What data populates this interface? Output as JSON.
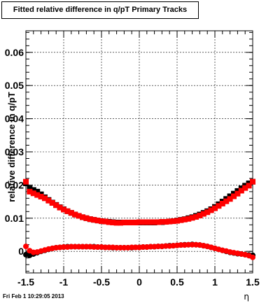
{
  "chart_data": {
    "type": "scatter",
    "title": "Fitted relative difference in q/pT  Primary Tracks",
    "xlabel": "η",
    "ylabel": "relative difference in q/pT",
    "xlim": [
      -1.5,
      1.5
    ],
    "ylim": [
      -0.0065,
      0.0665
    ],
    "grid": true,
    "x_ticks": [
      -1.5,
      -1,
      -0.5,
      0,
      0.5,
      1,
      1.5
    ],
    "x_tick_labels": [
      "-1.5",
      "-1",
      "-0.5",
      "0",
      "0.5",
      "1",
      "1.5"
    ],
    "y_ticks": [
      0,
      0.01,
      0.02,
      0.03,
      0.04,
      0.05,
      0.06
    ],
    "y_tick_labels": [
      "0",
      "0.01",
      "0.02",
      "0.03",
      "0.04",
      "0.05",
      "0.06"
    ],
    "colors": {
      "series_black": "#000000",
      "series_red": "#ff0000"
    },
    "series": [
      {
        "marker": "square",
        "color": "#000000",
        "x": [
          -1.5,
          -1.45,
          -1.4,
          -1.35,
          -1.3,
          -1.25,
          -1.2,
          -1.15,
          -1.1,
          -1.05,
          -1.0,
          -0.95,
          -0.9,
          -0.85,
          -0.8,
          -0.75,
          -0.7,
          -0.65,
          -0.6,
          -0.55,
          -0.5,
          -0.45,
          -0.4,
          -0.35,
          -0.3,
          -0.25,
          -0.2,
          -0.15,
          -0.1,
          -0.05,
          0.0,
          0.05,
          0.1,
          0.15,
          0.2,
          0.25,
          0.3,
          0.35,
          0.4,
          0.45,
          0.5,
          0.55,
          0.6,
          0.65,
          0.7,
          0.75,
          0.8,
          0.85,
          0.9,
          0.95,
          1.0,
          1.05,
          1.1,
          1.15,
          1.2,
          1.25,
          1.3,
          1.35,
          1.4,
          1.45,
          1.5
        ],
        "y": [
          0.0205,
          0.019,
          0.0185,
          0.018,
          0.0172,
          0.0163,
          0.0155,
          0.0147,
          0.014,
          0.0133,
          0.0127,
          0.0121,
          0.0116,
          0.0111,
          0.0107,
          0.0103,
          0.01,
          0.0097,
          0.0095,
          0.0093,
          0.0091,
          0.009,
          0.0089,
          0.0088,
          0.0087,
          0.0087,
          0.0087,
          0.0087,
          0.0087,
          0.0087,
          0.0087,
          0.0087,
          0.0087,
          0.0087,
          0.0087,
          0.0088,
          0.0088,
          0.0089,
          0.009,
          0.0091,
          0.0093,
          0.0095,
          0.0097,
          0.01,
          0.0103,
          0.0107,
          0.0111,
          0.0116,
          0.0121,
          0.0127,
          0.0134,
          0.0142,
          0.015,
          0.0158,
          0.0166,
          0.0174,
          0.0182,
          0.019,
          0.0198,
          0.0205,
          0.021
        ]
      },
      {
        "marker": "circle",
        "color": "#000000",
        "x": [
          -1.5,
          -1.45,
          -1.4,
          -1.35,
          -1.3,
          -1.25,
          -1.2,
          -1.15,
          -1.1,
          -1.05,
          -1.0,
          -0.95,
          -0.9,
          -0.85,
          -0.8,
          -0.75,
          -0.7,
          -0.65,
          -0.6,
          -0.55,
          -0.5,
          -0.45,
          -0.4,
          -0.35,
          -0.3,
          -0.25,
          -0.2,
          -0.15,
          -0.1,
          -0.05,
          0.0,
          0.05,
          0.1,
          0.15,
          0.2,
          0.25,
          0.3,
          0.35,
          0.4,
          0.45,
          0.5,
          0.55,
          0.6,
          0.65,
          0.7,
          0.75,
          0.8,
          0.85,
          0.9,
          0.95,
          1.0,
          1.05,
          1.1,
          1.15,
          1.2,
          1.25,
          1.3,
          1.35,
          1.4,
          1.45,
          1.5
        ],
        "y": [
          -0.001,
          -0.0012,
          -0.0008,
          -0.0004,
          0.0,
          0.0003,
          0.0006,
          0.0009,
          0.0011,
          0.0012,
          0.0013,
          0.0014,
          0.0014,
          0.0014,
          0.0014,
          0.0014,
          0.0014,
          0.0014,
          0.0014,
          0.0013,
          0.0013,
          0.0012,
          0.0012,
          0.0011,
          0.0011,
          0.0011,
          0.0011,
          0.0011,
          0.0011,
          0.0012,
          0.0012,
          0.0013,
          0.0013,
          0.0014,
          0.0014,
          0.0015,
          0.0015,
          0.0016,
          0.0017,
          0.0017,
          0.0018,
          0.0019,
          0.002,
          0.002,
          0.0021,
          0.002,
          0.0019,
          0.0017,
          0.0015,
          0.0012,
          0.0009,
          0.0006,
          0.0003,
          0.0,
          -0.0003,
          -0.0005,
          -0.0007,
          -0.0008,
          -0.001,
          -0.0011,
          -0.0012
        ]
      },
      {
        "marker": "square",
        "color": "#ff0000",
        "x": [
          -1.5,
          -1.45,
          -1.4,
          -1.35,
          -1.3,
          -1.25,
          -1.2,
          -1.15,
          -1.1,
          -1.05,
          -1.0,
          -0.95,
          -0.9,
          -0.85,
          -0.8,
          -0.75,
          -0.7,
          -0.65,
          -0.6,
          -0.55,
          -0.5,
          -0.45,
          -0.4,
          -0.35,
          -0.3,
          -0.25,
          -0.2,
          -0.15,
          -0.1,
          -0.05,
          0.0,
          0.05,
          0.1,
          0.15,
          0.2,
          0.25,
          0.3,
          0.35,
          0.4,
          0.45,
          0.5,
          0.55,
          0.6,
          0.65,
          0.7,
          0.75,
          0.8,
          0.85,
          0.9,
          0.95,
          1.0,
          1.05,
          1.1,
          1.15,
          1.2,
          1.25,
          1.3,
          1.35,
          1.4,
          1.45,
          1.5
        ],
        "y": [
          0.021,
          0.018,
          0.0175,
          0.017,
          0.0165,
          0.016,
          0.0153,
          0.0146,
          0.0139,
          0.0132,
          0.0126,
          0.0121,
          0.0116,
          0.0111,
          0.0107,
          0.0103,
          0.01,
          0.0097,
          0.0095,
          0.0093,
          0.0091,
          0.009,
          0.0088,
          0.0087,
          0.0086,
          0.0086,
          0.0087,
          0.0087,
          0.0087,
          0.0087,
          0.0088,
          0.0088,
          0.0088,
          0.0088,
          0.0088,
          0.0088,
          0.0089,
          0.0089,
          0.009,
          0.0091,
          0.0092,
          0.0094,
          0.0096,
          0.0098,
          0.0101,
          0.0104,
          0.0108,
          0.0113,
          0.0118,
          0.0124,
          0.013,
          0.0137,
          0.0144,
          0.0151,
          0.0158,
          0.0166,
          0.0174,
          0.0183,
          0.0191,
          0.0198,
          0.021
        ]
      },
      {
        "marker": "circle",
        "color": "#ff0000",
        "x": [
          -1.5,
          -1.45,
          -1.4,
          -1.35,
          -1.3,
          -1.25,
          -1.2,
          -1.15,
          -1.1,
          -1.05,
          -1.0,
          -0.95,
          -0.9,
          -0.85,
          -0.8,
          -0.75,
          -0.7,
          -0.65,
          -0.6,
          -0.55,
          -0.5,
          -0.45,
          -0.4,
          -0.35,
          -0.3,
          -0.25,
          -0.2,
          -0.15,
          -0.1,
          -0.05,
          0.0,
          0.05,
          0.1,
          0.15,
          0.2,
          0.25,
          0.3,
          0.35,
          0.4,
          0.45,
          0.5,
          0.55,
          0.6,
          0.65,
          0.7,
          0.75,
          0.8,
          0.85,
          0.9,
          0.95,
          1.0,
          1.05,
          1.1,
          1.15,
          1.2,
          1.25,
          1.3,
          1.35,
          1.4,
          1.45,
          1.5
        ],
        "y": [
          0.0015,
          0.0002,
          -0.0003,
          -0.0002,
          0.0001,
          0.0004,
          0.0007,
          0.0009,
          0.0011,
          0.0012,
          0.0013,
          0.0013,
          0.0014,
          0.0014,
          0.0014,
          0.0014,
          0.0014,
          0.0014,
          0.0013,
          0.0013,
          0.0013,
          0.0012,
          0.0012,
          0.0012,
          0.0011,
          0.0011,
          0.0011,
          0.0011,
          0.0012,
          0.0012,
          0.0012,
          0.0013,
          0.0013,
          0.0014,
          0.0014,
          0.0015,
          0.0015,
          0.0016,
          0.0016,
          0.0017,
          0.0018,
          0.0019,
          0.0019,
          0.002,
          0.002,
          0.002,
          0.0019,
          0.0017,
          0.0015,
          0.0012,
          0.0009,
          0.0006,
          0.0003,
          0.0001,
          -0.0002,
          -0.0004,
          -0.0006,
          -0.0008,
          -0.001,
          -0.0013,
          -0.0018
        ]
      }
    ]
  },
  "footer": {
    "timestamp": "Fri Feb  1 10:29:05 2013"
  }
}
